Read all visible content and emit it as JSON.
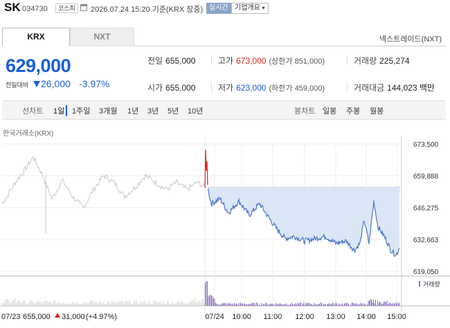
{
  "header": {
    "name": "SK",
    "code": "034730",
    "market": "코스피",
    "timestamp": "2026.07.24 15:20 기준(KRX 장중)",
    "realtime": "실시간",
    "corp_info": "기업개요"
  },
  "tabs": [
    "KRX",
    "NXT"
  ],
  "nextrade_link": "넥스트레이드(NXT)",
  "quote": {
    "price": "629,000",
    "change_label": "전일대비",
    "change": "26,000",
    "change_pct": "-3.97%"
  },
  "stats": {
    "prev_label": "전일",
    "prev": "655,000",
    "high_label": "고가",
    "high": "673,000",
    "upper_limit": "(상한가 851,000)",
    "volume_label": "거래량",
    "volume": "225,274",
    "open_label": "시가",
    "open": "655,000",
    "low_label": "저가",
    "low": "623,000",
    "lower_limit": "(하한가 459,000)",
    "amount_label": "거래대금",
    "amount": "144,023 백만"
  },
  "period_bar": {
    "line_chart_label": "선차트",
    "periods": [
      "1일",
      "1주일",
      "3개월",
      "1년",
      "3년",
      "5년",
      "10년"
    ],
    "candle_label": "봉차트",
    "candles": [
      "일봉",
      "주봉",
      "월봉"
    ]
  },
  "chart_source": "한국거래소(KRX)",
  "chart_data": {
    "type": "line",
    "y_ticks": [
      "673,500",
      "659,888",
      "646,275",
      "632,663",
      "619,050"
    ],
    "x_ticks": [
      "07/24",
      "10:00",
      "11:00",
      "12:00",
      "13:00",
      "14:00",
      "15:00"
    ],
    "prev_close": 655000,
    "volume_legend": "거래량",
    "prev_day": {
      "date": "07/23",
      "close": "655,000",
      "change": "31,000",
      "change_pct": "(+4.97%)"
    },
    "colors": {
      "today_line": "#4a76c9",
      "today_fill": "#dbe6f7",
      "prev_line": "#c8c8c8",
      "up": "#e2231a",
      "volume": "#8a6fc0"
    }
  }
}
